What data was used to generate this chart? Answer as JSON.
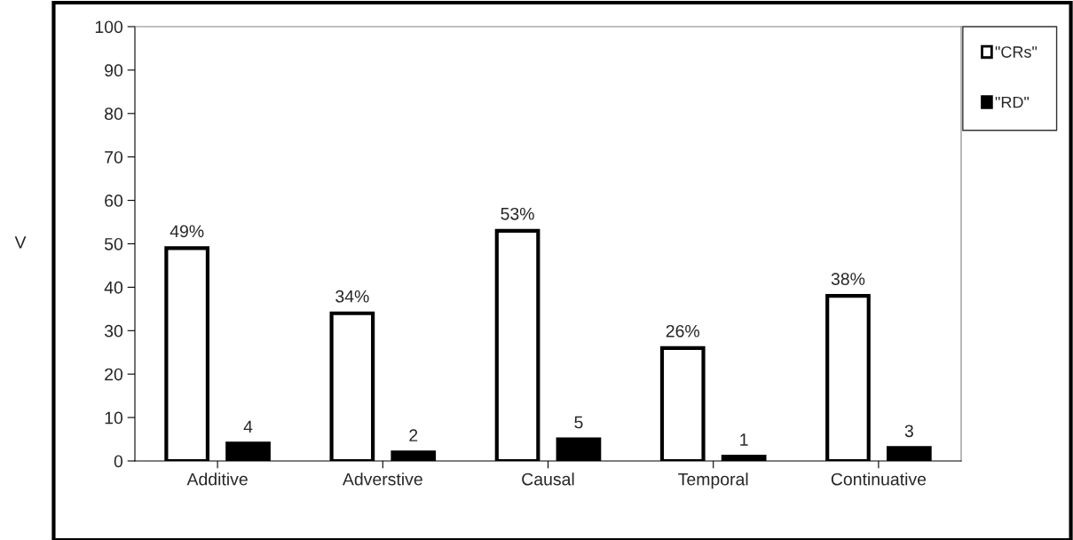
{
  "chart_data": {
    "type": "bar",
    "ylabel": "V",
    "categories": [
      "Additive",
      "Adverstive",
      "Causal",
      "Temporal",
      "Continuative"
    ],
    "series": [
      {
        "name": "\"CRs\"",
        "color": "#ffffff",
        "values": [
          49,
          34,
          53,
          26,
          38
        ],
        "value_labels": [
          "49%",
          "34%",
          "53%",
          "26%",
          "38%"
        ]
      },
      {
        "name": "\"RD\"",
        "color": "#000000",
        "values": [
          4,
          2,
          5,
          1,
          3
        ],
        "value_labels": [
          "4",
          "2",
          "5",
          "1",
          "3"
        ]
      }
    ],
    "ylim": [
      0,
      100
    ],
    "yticks": [
      0,
      10,
      20,
      30,
      40,
      50,
      60,
      70,
      80,
      90,
      100
    ],
    "grid": false,
    "legend": "top right"
  }
}
